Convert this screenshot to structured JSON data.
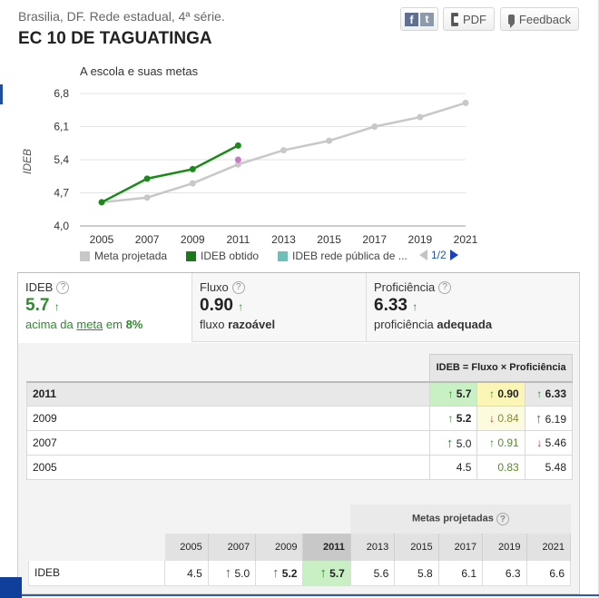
{
  "header": {
    "subtitle": "Brasilia, DF. Rede estadual, 4ª série.",
    "title": "EC 10 DE TAGUATINGA"
  },
  "toolbar": {
    "social_f": "f",
    "social_t": "t",
    "pdf_label": "PDF",
    "feedback_label": "Feedback"
  },
  "chart_data": {
    "type": "line",
    "title": "A escola e suas metas",
    "ylabel": "IDEB",
    "xlabel": "",
    "ylim": [
      4.0,
      6.8
    ],
    "yticks": [
      "6,8",
      "6,1",
      "5,4",
      "4,7",
      "4,0"
    ],
    "categories": [
      "2005",
      "2007",
      "2009",
      "2011",
      "2013",
      "2015",
      "2017",
      "2019",
      "2021"
    ],
    "series": [
      {
        "name": "Meta projetada",
        "color": "#c8c8c8",
        "values": [
          4.5,
          4.6,
          4.9,
          5.3,
          5.6,
          5.8,
          6.1,
          6.3,
          6.6
        ]
      },
      {
        "name": "IDEB obtido",
        "color": "#1a8a1a",
        "values": [
          4.5,
          5.0,
          5.2,
          5.7,
          null,
          null,
          null,
          null,
          null
        ]
      },
      {
        "name": "IDEB rede pública de ...",
        "color": "#6dbfb8",
        "values": [
          null,
          null,
          null,
          5.4,
          null,
          null,
          null,
          null,
          null
        ]
      }
    ],
    "legend_position": "bottom",
    "grid": true
  },
  "legend": {
    "item1": "Meta projetada",
    "item2": "IDEB obtido",
    "item3": "IDEB rede pública de ...",
    "page": "1/2"
  },
  "cards": {
    "ideb": {
      "label": "IDEB",
      "value": "5.7",
      "arrow": "↑",
      "desc_pre": "acima da ",
      "desc_link": "meta",
      "desc_mid": " em ",
      "desc_pct": "8%"
    },
    "fluxo": {
      "label": "Fluxo",
      "value": "0.90",
      "arrow": "↑",
      "desc_pre": "fluxo ",
      "desc_bold": "razoável"
    },
    "prof": {
      "label": "Proficiência",
      "value": "6.33",
      "arrow": "↑",
      "desc_pre": "proficiência ",
      "desc_bold": "adequada"
    }
  },
  "formula_header": "IDEB = Fluxo × Proficiência",
  "history": [
    {
      "year": "2011",
      "ideb_arrow": "↑",
      "ideb": "5.7",
      "fluxo_arrow": "↑",
      "fluxo": "0.90",
      "prof_arrow": "↑",
      "prof": "6.33"
    },
    {
      "year": "2009",
      "ideb_arrow": "↑",
      "ideb": "5.2",
      "fluxo_arrow": "↓",
      "fluxo": "0.84",
      "prof_arrow": "↑",
      "prof": "6.19"
    },
    {
      "year": "2007",
      "ideb_arrow": "↑",
      "ideb": "5.0",
      "fluxo_arrow": "↑",
      "fluxo": "0.91",
      "prof_arrow": "↓",
      "prof": "5.46"
    },
    {
      "year": "2005",
      "ideb_arrow": "",
      "ideb": "4.5",
      "fluxo_arrow": "",
      "fluxo": "0.83",
      "prof_arrow": "",
      "prof": "5.48"
    }
  ],
  "metas": {
    "title": "Metas projetadas",
    "row_label": "IDEB",
    "years": [
      "2005",
      "2007",
      "2009",
      "2011",
      "2013",
      "2015",
      "2017",
      "2019",
      "2021"
    ],
    "values": [
      "4.5",
      "5.0",
      "5.2",
      "5.7",
      "5.6",
      "5.8",
      "6.1",
      "6.3",
      "6.6"
    ],
    "arrows": [
      "",
      "↑",
      "↑",
      "↑",
      "",
      "",
      "",
      "",
      ""
    ]
  }
}
